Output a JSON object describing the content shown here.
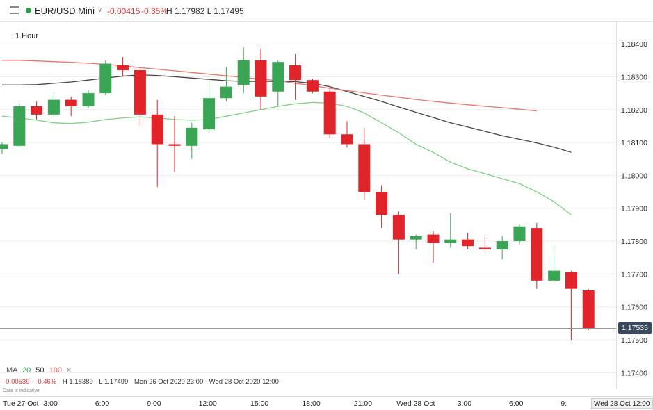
{
  "header": {
    "symbol": "EUR/USD Mini",
    "change": "-0.00415",
    "change_pct": "-0.35%",
    "high_low": "H 1.17982  L 1.17495",
    "timeframe": "1 Hour"
  },
  "legend": {
    "ma_label": "MA",
    "ma20": "20",
    "ma50": "50",
    "ma100": "100",
    "close": "×"
  },
  "stats": {
    "change": "-0.00539",
    "change_pct": "-0.46%",
    "high": "H 1.18389",
    "low": "L 1.17499",
    "range": "Mon 26 Oct 2020 23:00 - Wed 28 Oct 2020 12:00",
    "note": "Data is indicative"
  },
  "price_badge": "1.17535",
  "cursor_time": "Wed 28 Oct 12:00",
  "time_ticks": [
    {
      "label": "Tue 27 Oct",
      "hour": 0
    },
    {
      "label": "3:00",
      "hour": 3
    },
    {
      "label": "6:00",
      "hour": 6
    },
    {
      "label": "9:00",
      "hour": 9
    },
    {
      "label": "12:00",
      "hour": 12
    },
    {
      "label": "15:00",
      "hour": 15
    },
    {
      "label": "18:00",
      "hour": 18
    },
    {
      "label": "21:00",
      "hour": 21
    },
    {
      "label": "Wed 28 Oct",
      "hour": 24
    },
    {
      "label": "3:00",
      "hour": 27
    },
    {
      "label": "6:00",
      "hour": 30
    },
    {
      "label": "9:",
      "hour": 33
    }
  ],
  "colors": {
    "up": "#3aa655",
    "down": "#e0242a",
    "ma20": "#7fcf86",
    "ma50": "#444444",
    "ma100": "#e8756b",
    "grid": "#eeeeee"
  },
  "chart_data": {
    "type": "candlestick",
    "timeframe": "1 Hour",
    "ylim": [
      1.1735,
      1.1847
    ],
    "yticks": [
      "1.18400",
      "1.18300",
      "1.18200",
      "1.18100",
      "1.18000",
      "1.17900",
      "1.17800",
      "1.17700",
      "1.17600",
      "1.17500",
      "1.17400"
    ],
    "current_price": 1.17535,
    "candles": [
      {
        "time": "Tue 27 Oct 00:00",
        "o": 1.1808,
        "h": 1.181,
        "l": 1.18065,
        "c": 1.18095
      },
      {
        "time": "Tue 27 Oct 01:00",
        "o": 1.1809,
        "h": 1.1822,
        "l": 1.18085,
        "c": 1.1821
      },
      {
        "time": "Tue 27 Oct 02:00",
        "o": 1.1821,
        "h": 1.18225,
        "l": 1.1817,
        "c": 1.18185
      },
      {
        "time": "Tue 27 Oct 03:00",
        "o": 1.18185,
        "h": 1.18255,
        "l": 1.18175,
        "c": 1.1823
      },
      {
        "time": "Tue 27 Oct 04:00",
        "o": 1.1823,
        "h": 1.1824,
        "l": 1.1818,
        "c": 1.1821
      },
      {
        "time": "Tue 27 Oct 05:00",
        "o": 1.1821,
        "h": 1.1826,
        "l": 1.18205,
        "c": 1.1825
      },
      {
        "time": "Tue 27 Oct 06:00",
        "o": 1.1825,
        "h": 1.1835,
        "l": 1.18245,
        "c": 1.1834
      },
      {
        "time": "Tue 27 Oct 07:00",
        "o": 1.18335,
        "h": 1.1836,
        "l": 1.183,
        "c": 1.1832
      },
      {
        "time": "Tue 27 Oct 08:00",
        "o": 1.1832,
        "h": 1.18325,
        "l": 1.1815,
        "c": 1.18185
      },
      {
        "time": "Tue 27 Oct 09:00",
        "o": 1.18185,
        "h": 1.1823,
        "l": 1.17965,
        "c": 1.18095
      },
      {
        "time": "Tue 27 Oct 10:00",
        "o": 1.18095,
        "h": 1.1818,
        "l": 1.1801,
        "c": 1.1809
      },
      {
        "time": "Tue 27 Oct 11:00",
        "o": 1.1809,
        "h": 1.1816,
        "l": 1.1805,
        "c": 1.18145
      },
      {
        "time": "Tue 27 Oct 12:00",
        "o": 1.1814,
        "h": 1.1829,
        "l": 1.1813,
        "c": 1.18235
      },
      {
        "time": "Tue 27 Oct 13:00",
        "o": 1.18235,
        "h": 1.1833,
        "l": 1.18225,
        "c": 1.1827
      },
      {
        "time": "Tue 27 Oct 14:00",
        "o": 1.18275,
        "h": 1.1839,
        "l": 1.1825,
        "c": 1.1835
      },
      {
        "time": "Tue 27 Oct 15:00",
        "o": 1.1835,
        "h": 1.18385,
        "l": 1.182,
        "c": 1.1824
      },
      {
        "time": "Tue 27 Oct 16:00",
        "o": 1.18255,
        "h": 1.1835,
        "l": 1.1821,
        "c": 1.18345
      },
      {
        "time": "Tue 27 Oct 17:00",
        "o": 1.18335,
        "h": 1.1837,
        "l": 1.1823,
        "c": 1.1829
      },
      {
        "time": "Tue 27 Oct 18:00",
        "o": 1.1829,
        "h": 1.18295,
        "l": 1.1825,
        "c": 1.18255
      },
      {
        "time": "Tue 27 Oct 19:00",
        "o": 1.18255,
        "h": 1.1827,
        "l": 1.18115,
        "c": 1.18125
      },
      {
        "time": "Tue 27 Oct 20:00",
        "o": 1.18125,
        "h": 1.18165,
        "l": 1.18085,
        "c": 1.18095
      },
      {
        "time": "Tue 27 Oct 21:00",
        "o": 1.18095,
        "h": 1.18145,
        "l": 1.17925,
        "c": 1.1795
      },
      {
        "time": "Tue 27 Oct 22:00",
        "o": 1.1795,
        "h": 1.1797,
        "l": 1.1784,
        "c": 1.1788
      },
      {
        "time": "Tue 27 Oct 23:00",
        "o": 1.1788,
        "h": 1.1789,
        "l": 1.177,
        "c": 1.17805
      },
      {
        "time": "Wed 28 Oct 00:00",
        "o": 1.17805,
        "h": 1.1782,
        "l": 1.17775,
        "c": 1.17815
      },
      {
        "time": "Wed 28 Oct 01:00",
        "o": 1.1782,
        "h": 1.1783,
        "l": 1.17735,
        "c": 1.17795
      },
      {
        "time": "Wed 28 Oct 02:00",
        "o": 1.17795,
        "h": 1.17885,
        "l": 1.1778,
        "c": 1.17805
      },
      {
        "time": "Wed 28 Oct 03:00",
        "o": 1.17805,
        "h": 1.17825,
        "l": 1.17775,
        "c": 1.17785
      },
      {
        "time": "Wed 28 Oct 04:00",
        "o": 1.1778,
        "h": 1.17815,
        "l": 1.1777,
        "c": 1.17775
      },
      {
        "time": "Wed 28 Oct 05:00",
        "o": 1.17775,
        "h": 1.17815,
        "l": 1.17745,
        "c": 1.178
      },
      {
        "time": "Wed 28 Oct 06:00",
        "o": 1.178,
        "h": 1.1785,
        "l": 1.1779,
        "c": 1.17845
      },
      {
        "time": "Wed 28 Oct 07:00",
        "o": 1.1784,
        "h": 1.17855,
        "l": 1.17655,
        "c": 1.1768
      },
      {
        "time": "Wed 28 Oct 08:00",
        "o": 1.1768,
        "h": 1.17785,
        "l": 1.17675,
        "c": 1.1771
      },
      {
        "time": "Wed 28 Oct 09:00",
        "o": 1.17705,
        "h": 1.1771,
        "l": 1.175,
        "c": 1.17655
      },
      {
        "time": "Wed 28 Oct 10:00",
        "o": 1.1765,
        "h": 1.17655,
        "l": 1.1753,
        "c": 1.17535
      }
    ],
    "moving_averages": [
      {
        "name": "MA 20",
        "values": [
          1.1818,
          1.18175,
          1.18168,
          1.1816,
          1.18158,
          1.18162,
          1.1817,
          1.18175,
          1.18178,
          1.18175,
          1.1817,
          1.18168,
          1.1817,
          1.1818,
          1.1819,
          1.182,
          1.1821,
          1.18218,
          1.18222,
          1.1822,
          1.1821,
          1.1819,
          1.1816,
          1.1813,
          1.18095,
          1.1807,
          1.1804,
          1.1802,
          1.18005,
          1.1799,
          1.17975,
          1.1795,
          1.1792,
          1.1788
        ]
      },
      {
        "name": "MA 50",
        "values": [
          1.18275,
          1.18275,
          1.18276,
          1.1828,
          1.18284,
          1.1829,
          1.18296,
          1.18302,
          1.18306,
          1.18304,
          1.183,
          1.18296,
          1.18292,
          1.18288,
          1.18286,
          1.18286,
          1.18286,
          1.18285,
          1.1828,
          1.1827,
          1.18255,
          1.1824,
          1.18225,
          1.18208,
          1.18192,
          1.18176,
          1.1816,
          1.18147,
          1.18134,
          1.18121,
          1.1811,
          1.18099,
          1.18086,
          1.1807
        ]
      },
      {
        "name": "MA 100",
        "values": [
          1.1835,
          1.1835,
          1.18348,
          1.18346,
          1.18344,
          1.18341,
          1.18338,
          1.18333,
          1.18328,
          1.18323,
          1.18318,
          1.18313,
          1.18308,
          1.18303,
          1.18298,
          1.18293,
          1.18288,
          1.1828,
          1.18273,
          1.18265,
          1.18258,
          1.18251,
          1.18244,
          1.18238,
          1.18231,
          1.18225,
          1.1822,
          1.18215,
          1.1821,
          1.18206,
          1.18201,
          1.18196
        ]
      }
    ]
  }
}
